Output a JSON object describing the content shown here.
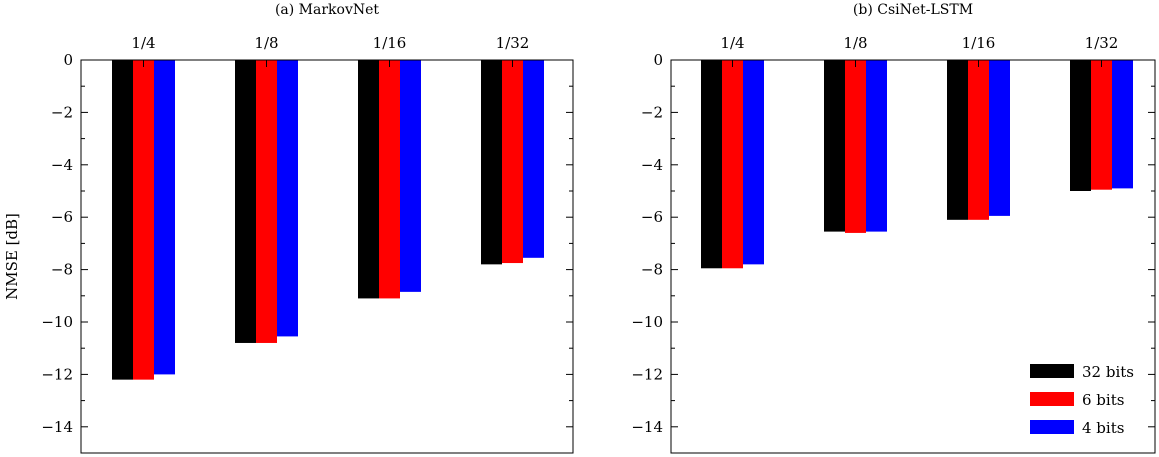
{
  "chart_data": [
    {
      "type": "bar",
      "title": "(a) MarkovNet",
      "xlabel": "",
      "ylabel": "NMSE [dB]",
      "categories": [
        "1/4",
        "1/8",
        "1/16",
        "1/32"
      ],
      "x_axis_position": "top",
      "ylim": [
        -15,
        0
      ],
      "yticks": [
        "0",
        "−2",
        "−4",
        "−6",
        "−8",
        "−10",
        "−12",
        "−14"
      ],
      "series": [
        {
          "name": "32 bits",
          "color": "#000000",
          "values": [
            -12.2,
            -10.8,
            -9.1,
            -7.8
          ]
        },
        {
          "name": "6 bits",
          "color": "#ff0000",
          "values": [
            -12.2,
            -10.8,
            -9.1,
            -7.75
          ]
        },
        {
          "name": "4 bits",
          "color": "#0000ff",
          "values": [
            -12.0,
            -10.55,
            -8.85,
            -7.55
          ]
        }
      ],
      "grid": false,
      "legend": "none"
    },
    {
      "type": "bar",
      "title": "(b) CsiNet-LSTM",
      "xlabel": "",
      "ylabel": "",
      "categories": [
        "1/4",
        "1/8",
        "1/16",
        "1/32"
      ],
      "x_axis_position": "top",
      "ylim": [
        -15,
        0
      ],
      "yticks": [
        "0",
        "−2",
        "−4",
        "−6",
        "−8",
        "−10",
        "−12",
        "−14"
      ],
      "series": [
        {
          "name": "32 bits",
          "color": "#000000",
          "values": [
            -7.95,
            -6.55,
            -6.1,
            -5.0
          ]
        },
        {
          "name": "6 bits",
          "color": "#ff0000",
          "values": [
            -7.95,
            -6.6,
            -6.1,
            -4.95
          ]
        },
        {
          "name": "4 bits",
          "color": "#0000ff",
          "values": [
            -7.8,
            -6.55,
            -5.95,
            -4.9
          ]
        }
      ],
      "grid": false,
      "legend": "bottom-right"
    }
  ]
}
